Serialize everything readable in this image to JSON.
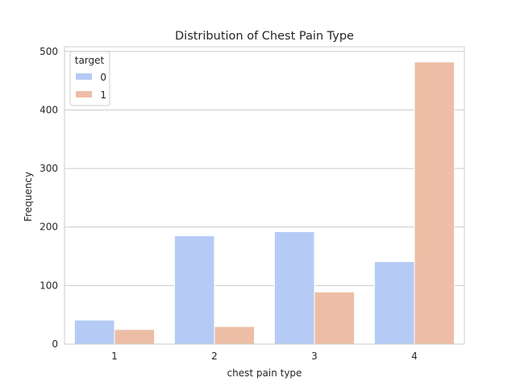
{
  "chart_data": {
    "type": "bar",
    "title": "Distribution of Chest Pain Type",
    "xlabel": "chest pain type",
    "ylabel": "Frequency",
    "categories": [
      "1",
      "2",
      "3",
      "4"
    ],
    "ylim": [
      0,
      508
    ],
    "yticks": [
      0,
      100,
      200,
      300,
      400,
      500
    ],
    "grid": true,
    "legend": {
      "title": "target",
      "placement": "top-left"
    },
    "series": [
      {
        "name": "0",
        "color": "#b5cbf5",
        "values": [
          41,
          185,
          192,
          141
        ]
      },
      {
        "name": "1",
        "color": "#edbea5",
        "values": [
          25,
          30,
          89,
          482
        ]
      }
    ]
  }
}
